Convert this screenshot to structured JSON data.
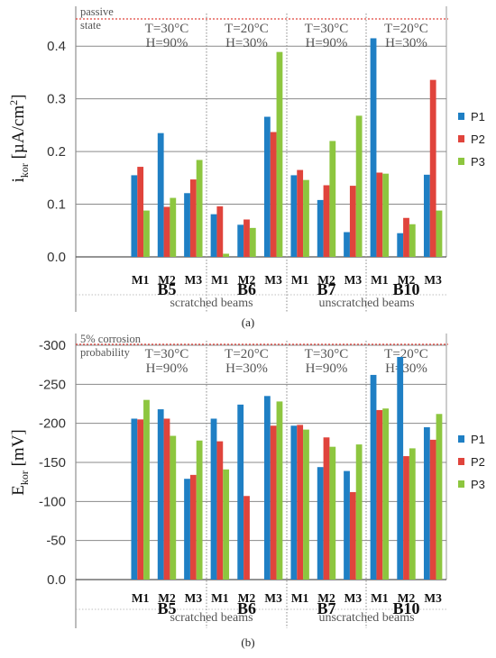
{
  "colors": {
    "P1": "#1f7fc4",
    "P2": "#e0443c",
    "P3": "#8dc63f",
    "grid": "#8a8a8a",
    "threshold": "#e0443c",
    "text": "#333333"
  },
  "legend_series": [
    "P1",
    "P2",
    "P3"
  ],
  "chart_data": [
    {
      "type": "bar",
      "panel_label": "(a)",
      "ylabel_main": "i",
      "ylabel_sub": "kor",
      "ylabel_unit": " [µA/cm",
      "ylabel_sup": "2",
      "ylabel_close": "]",
      "ylim": [
        0,
        0.45
      ],
      "yticks": [
        0.0,
        0.1,
        0.2,
        0.3,
        0.4
      ],
      "ytick_labels": [
        "0.0",
        "0.1",
        "0.2",
        "0.3",
        "0.4"
      ],
      "grid": true,
      "legend_position": "right",
      "threshold": {
        "value": 0.45,
        "label_lines": [
          "passive",
          "state"
        ]
      },
      "groups": [
        {
          "name": "B5",
          "condition_lines": [
            "T=30°C",
            "H=90%"
          ],
          "categories": [
            "M1",
            "M2",
            "M3"
          ],
          "series": [
            {
              "name": "P1",
              "values": [
                0.155,
                0.235,
                0.121
              ]
            },
            {
              "name": "P2",
              "values": [
                0.171,
                0.095,
                0.147
              ]
            },
            {
              "name": "P3",
              "values": [
                0.088,
                0.112,
                0.184
              ]
            }
          ]
        },
        {
          "name": "B6",
          "condition_lines": [
            "T=20°C",
            "H=30%"
          ],
          "categories": [
            "M1",
            "M2",
            "M3"
          ],
          "series": [
            {
              "name": "P1",
              "values": [
                0.081,
                0.061,
                0.266
              ]
            },
            {
              "name": "P2",
              "values": [
                0.096,
                0.071,
                0.237
              ]
            },
            {
              "name": "P3",
              "values": [
                0.006,
                0.055,
                0.389
              ]
            }
          ]
        },
        {
          "name": "B7",
          "condition_lines": [
            "T=30°C",
            "H=90%"
          ],
          "categories": [
            "M1",
            "M2",
            "M3"
          ],
          "series": [
            {
              "name": "P1",
              "values": [
                0.155,
                0.108,
                0.047
              ]
            },
            {
              "name": "P2",
              "values": [
                0.165,
                0.136,
                0.135
              ]
            },
            {
              "name": "P3",
              "values": [
                0.146,
                0.22,
                0.268
              ]
            }
          ]
        },
        {
          "name": "B10",
          "condition_lines": [
            "T=20°C",
            "H=30%"
          ],
          "categories": [
            "M1",
            "M2",
            "M3"
          ],
          "series": [
            {
              "name": "P1",
              "values": [
                0.415,
                0.045,
                0.156
              ]
            },
            {
              "name": "P2",
              "values": [
                0.16,
                0.074,
                0.336
              ]
            },
            {
              "name": "P3",
              "values": [
                0.158,
                0.062,
                0.088
              ]
            }
          ]
        }
      ],
      "group_classes": [
        {
          "label": "scratched beams",
          "groups": [
            "B5",
            "B6"
          ]
        },
        {
          "label": "unscratched beams",
          "groups": [
            "B7",
            "B10"
          ]
        }
      ]
    },
    {
      "type": "bar",
      "panel_label": "(b)",
      "ylabel_main": "E",
      "ylabel_sub": "kor",
      "ylabel_unit": " [mV]",
      "ylim": [
        0,
        -300
      ],
      "yticks": [
        0,
        -50,
        -100,
        -150,
        -200,
        -250,
        -300
      ],
      "ytick_labels": [
        "0.0",
        "-50",
        "-100",
        "-150",
        "-200",
        "-250",
        "-300"
      ],
      "grid": true,
      "legend_position": "right",
      "threshold": {
        "value": -300,
        "label_lines": [
          "5% corrosion",
          "probability"
        ]
      },
      "groups": [
        {
          "name": "B5",
          "condition_lines": [
            "T=30°C",
            "H=90%"
          ],
          "categories": [
            "M1",
            "M2",
            "M3"
          ],
          "series": [
            {
              "name": "P1",
              "values": [
                -206,
                -218,
                -129
              ]
            },
            {
              "name": "P2",
              "values": [
                -205,
                -206,
                -134
              ]
            },
            {
              "name": "P3",
              "values": [
                -230,
                -184,
                -178
              ]
            }
          ]
        },
        {
          "name": "B6",
          "condition_lines": [
            "T=20°C",
            "H=30%"
          ],
          "categories": [
            "M1",
            "M2",
            "M3"
          ],
          "series": [
            {
              "name": "P1",
              "values": [
                -206,
                -224,
                -235
              ]
            },
            {
              "name": "P2",
              "values": [
                -177,
                -107,
                -197
              ]
            },
            {
              "name": "P3",
              "values": [
                -141,
                0,
                -228
              ]
            }
          ]
        },
        {
          "name": "B7",
          "condition_lines": [
            "T=30°C",
            "H=90%"
          ],
          "categories": [
            "M1",
            "M2",
            "M3"
          ],
          "series": [
            {
              "name": "P1",
              "values": [
                -197,
                -144,
                -139
              ]
            },
            {
              "name": "P2",
              "values": [
                -198,
                -182,
                -112
              ]
            },
            {
              "name": "P3",
              "values": [
                -192,
                -170,
                -173
              ]
            }
          ]
        },
        {
          "name": "B10",
          "condition_lines": [
            "T=20°C",
            "H=30%"
          ],
          "categories": [
            "M1",
            "M2",
            "M3"
          ],
          "series": [
            {
              "name": "P1",
              "values": [
                -262,
                -285,
                -195
              ]
            },
            {
              "name": "P2",
              "values": [
                -217,
                -158,
                -179
              ]
            },
            {
              "name": "P3",
              "values": [
                -219,
                -168,
                -212
              ]
            }
          ]
        }
      ],
      "group_classes": [
        {
          "label": "scratched beams",
          "groups": [
            "B5",
            "B6"
          ]
        },
        {
          "label": "unscratched beams",
          "groups": [
            "B7",
            "B10"
          ]
        }
      ]
    }
  ]
}
